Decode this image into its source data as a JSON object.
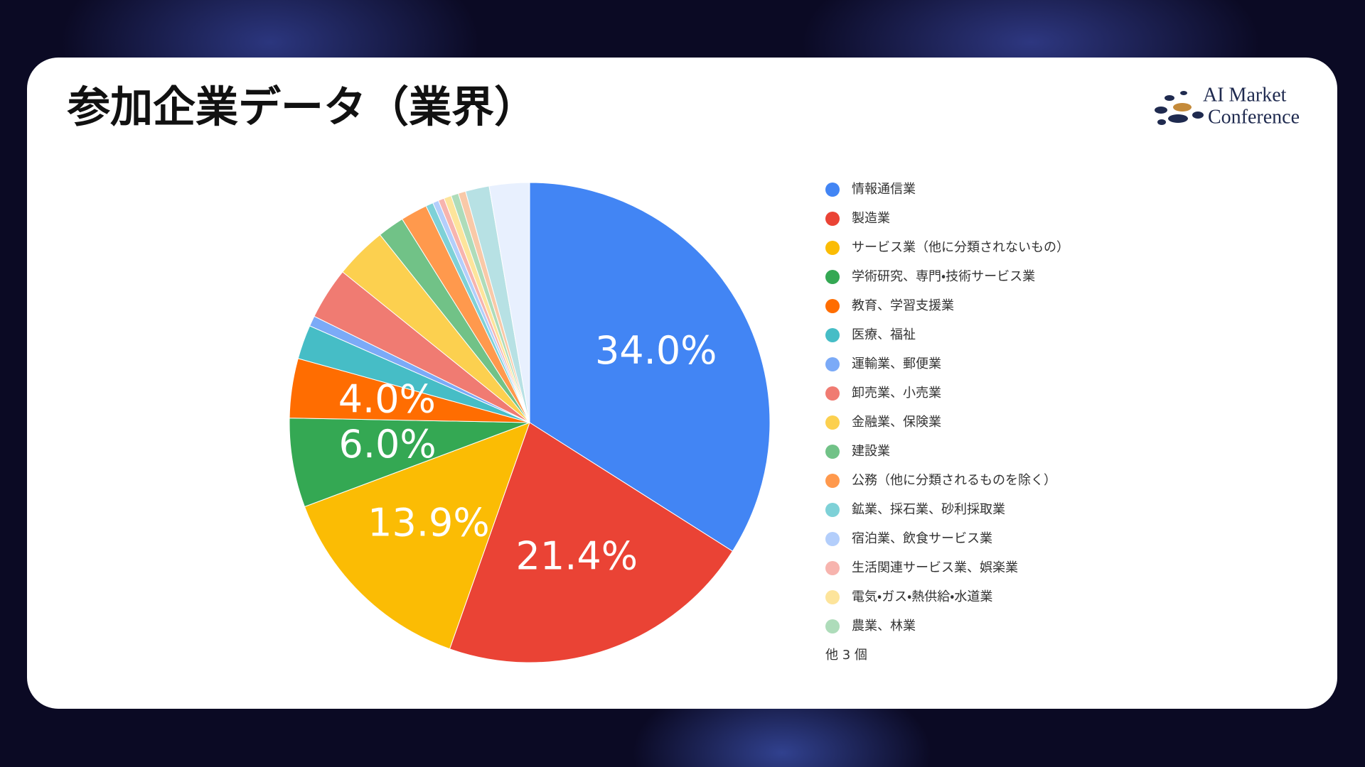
{
  "chart_data": {
    "type": "pie",
    "title": "参加企業データ（業界）",
    "logo": [
      "AI Market",
      "Conference"
    ],
    "categories": [
      "情報通信業",
      "製造業",
      "サービス業（他に分類されないもの）",
      "学術研究、専門・技術サービス業",
      "教育、学習支援業",
      "医療、福祉",
      "運輸業、郵便業",
      "卸売業、小売業",
      "金融業、保険業",
      "建設業",
      "公務（他に分類されるものを除く）",
      "鉱業、採石業、砂利採取業",
      "宿泊業、飲食サービス業",
      "生活関連サービス業、娯楽業",
      "電気・ガス・熱供給・水道業",
      "農業、林業",
      null,
      null,
      null
    ],
    "values": [
      34.0,
      21.4,
      13.9,
      6.0,
      4.0,
      2.3,
      0.7,
      3.5,
      3.5,
      1.8,
      1.8,
      0.5,
      0.4,
      0.4,
      0.5,
      0.5,
      0.5,
      1.6,
      2.7
    ],
    "value_labels": [
      "34.0%",
      "21.4%",
      "13.9%",
      "6.0%",
      "4.0%",
      null,
      null,
      null,
      null,
      null,
      null,
      null,
      null,
      null,
      null,
      null,
      null,
      null,
      null
    ],
    "colors": [
      "#4285f4",
      "#ea4335",
      "#fbbc04",
      "#34a853",
      "#ff6d01",
      "#46bdc6",
      "#7baaf7",
      "#f07b72",
      "#fcd04f",
      "#71c287",
      "#ff994d",
      "#7ed1d7",
      "#b3cefb",
      "#f7b4ae",
      "#fde49b",
      "#aedcba",
      "#f9c9a8",
      "#b7e1e4",
      "#e8f0fe"
    ],
    "legend_more": "他 3 個"
  }
}
